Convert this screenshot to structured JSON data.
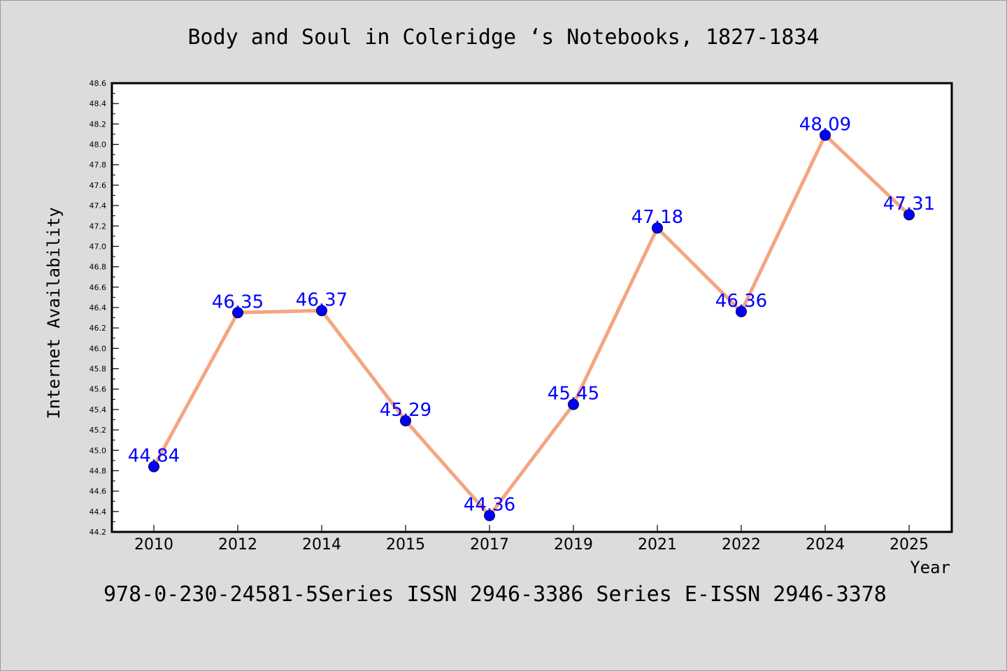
{
  "title": "Body and Soul in Coleridge ‘s Notebooks, 1827-1834",
  "footer": "978-0-230-24581-5Series ISSN 2946-3386 Series E-ISSN 2946-3378",
  "chart_data": {
    "type": "line",
    "title": "Body and Soul in Coleridge ‘s Notebooks, 1827-1834",
    "xlabel": "Year",
    "ylabel": "Internet Availability",
    "categories": [
      "2010",
      "2012",
      "2014",
      "2015",
      "2017",
      "2019",
      "2021",
      "2022",
      "2024",
      "2025"
    ],
    "series": [
      {
        "values": [
          44.84,
          46.35,
          46.37,
          45.29,
          44.36,
          45.45,
          47.18,
          46.36,
          48.09,
          47.31
        ]
      }
    ],
    "data_labels": [
      "44.84",
      "46.35",
      "46.37",
      "45.29",
      "44.36",
      "45.45",
      "47.18",
      "46.36",
      "48.09",
      "47.31"
    ],
    "ylim": [
      44.2,
      48.6
    ],
    "yticks": [
      "44.2",
      "44.4",
      "44.6",
      "44.8",
      "45.0",
      "45.2",
      "45.4",
      "45.6",
      "45.8",
      "46.0",
      "46.2",
      "46.4",
      "46.6",
      "46.8",
      "47.0",
      "47.2",
      "47.4",
      "47.6",
      "47.8",
      "48.0",
      "48.2",
      "48.4",
      "48.6"
    ],
    "grid": false,
    "colors": {
      "line": "#f4a582",
      "marker": "#0000ff",
      "label": "#0000ff",
      "background": "#dcdcdc",
      "plot_background": "#ffffff"
    }
  }
}
